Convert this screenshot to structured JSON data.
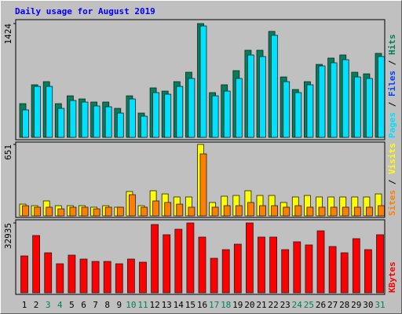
{
  "chart_data": [
    {
      "type": "bar",
      "title": "Daily usage for August 2019",
      "ylim": [
        0,
        1424
      ],
      "yticks": [
        1424
      ],
      "series": [
        {
          "name": "Hits",
          "color": "#00805c",
          "values": [
            422,
            658,
            697,
            422,
            520,
            481,
            442,
            442,
            363,
            520,
            304,
            619,
            579,
            697,
            815,
            1424,
            560,
            658,
            835,
            1090,
            1090,
            1326,
            756,
            599,
            697,
            913,
            992,
            1031,
            815,
            795,
            1051
          ]
        },
        {
          "name": "Pages",
          "color": "#00e0ff",
          "values": [
            344,
            638,
            638,
            363,
            462,
            442,
            393,
            383,
            304,
            481,
            265,
            560,
            540,
            638,
            737,
            1394,
            520,
            579,
            737,
            1031,
            1011,
            1277,
            697,
            560,
            658,
            894,
            933,
            972,
            756,
            737,
            1011
          ]
        }
      ],
      "files_label": "Files",
      "files_color": "#0040ff",
      "separator": "/"
    },
    {
      "type": "bar",
      "ylim": [
        0,
        651
      ],
      "yticks": [
        651
      ],
      "series": [
        {
          "name": "Visits",
          "color": "#ffff00",
          "values": [
            107,
            93,
            136,
            93,
            93,
            93,
            79,
            93,
            79,
            222,
            93,
            229,
            200,
            172,
            172,
            651,
            122,
            179,
            186,
            229,
            186,
            186,
            122,
            172,
            186,
            172,
            172,
            172,
            172,
            172,
            200
          ]
        },
        {
          "name": "Sites",
          "color": "#ff8000",
          "values": [
            93,
            79,
            79,
            64,
            79,
            79,
            64,
            79,
            79,
            193,
            79,
            136,
            122,
            107,
            79,
            565,
            79,
            93,
            93,
            122,
            93,
            93,
            79,
            93,
            79,
            79,
            79,
            79,
            79,
            79,
            93
          ]
        }
      ],
      "separator": "/"
    },
    {
      "type": "bar",
      "ylim": [
        0,
        32935
      ],
      "yticks": [
        32935
      ],
      "series": [
        {
          "name": "KBytes",
          "color": "#ff0000",
          "values": [
            17390,
            27010,
            18870,
            13690,
            17760,
            15910,
            14800,
            14800,
            13690,
            15910,
            14430,
            32190,
            27380,
            29970,
            32935,
            26270,
            16280,
            20350,
            22940,
            32935,
            26270,
            26270,
            20350,
            24050,
            22570,
            29230,
            21830,
            18870,
            25530,
            20350,
            27380
          ]
        }
      ],
      "categories": [
        "1",
        "2",
        "3",
        "4",
        "5",
        "6",
        "7",
        "8",
        "9",
        "10",
        "11",
        "12",
        "13",
        "14",
        "15",
        "16",
        "17",
        "18",
        "19",
        "20",
        "21",
        "22",
        "23",
        "24",
        "25",
        "26",
        "27",
        "28",
        "29",
        "30",
        "31"
      ],
      "label_colors": [
        "#000000",
        "#000000",
        "#00805c",
        "#00805c",
        "#000000",
        "#000000",
        "#000000",
        "#000000",
        "#000000",
        "#00805c",
        "#00805c",
        "#000000",
        "#000000",
        "#000000",
        "#000000",
        "#000000",
        "#00805c",
        "#00805c",
        "#000000",
        "#000000",
        "#000000",
        "#000000",
        "#000000",
        "#00805c",
        "#00805c",
        "#000000",
        "#000000",
        "#000000",
        "#000000",
        "#000000",
        "#00805c"
      ]
    }
  ]
}
